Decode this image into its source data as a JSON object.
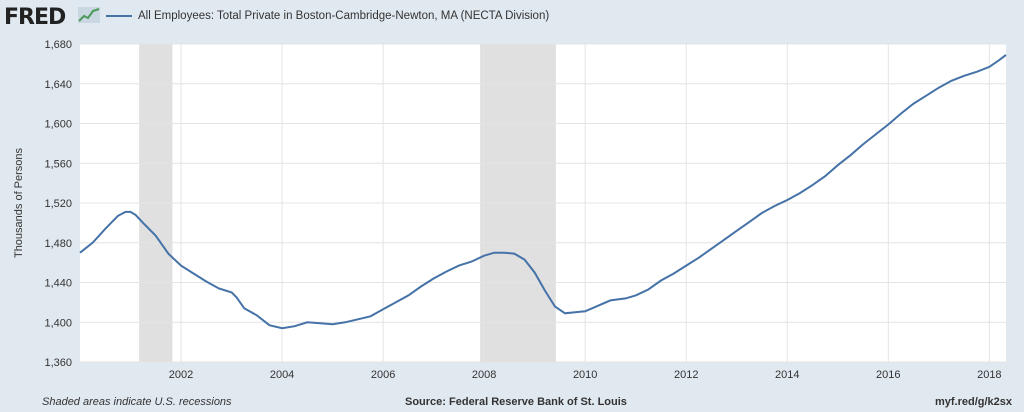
{
  "header": {
    "logo_text": "FRED",
    "logo_icon": "chart-line-icon",
    "legend_label": "All Employees: Total Private in Boston-Cambridge-Newton, MA (NECTA Division)"
  },
  "footer": {
    "note": "Shaded areas indicate U.S. recessions",
    "source": "Source: Federal Reserve Bank of St. Louis",
    "url": "myf.red/g/k2sx"
  },
  "colors": {
    "line": "#4572a7",
    "recession": "#e0e0e0",
    "background": "#e1e9f0",
    "plot": "#ffffff"
  },
  "chart_data": {
    "type": "line",
    "title": "",
    "xlabel": "",
    "ylabel": "Thousands of Persons",
    "xlim": [
      2000.0,
      2018.33
    ],
    "ylim": [
      1360,
      1680
    ],
    "yticks": [
      1360,
      1400,
      1440,
      1480,
      1520,
      1560,
      1600,
      1640,
      1680
    ],
    "xticks": [
      2002,
      2004,
      2006,
      2008,
      2010,
      2012,
      2014,
      2016,
      2018
    ],
    "ytick_labels": [
      "1,360",
      "1,400",
      "1,440",
      "1,480",
      "1,520",
      "1,560",
      "1,600",
      "1,640",
      "1,680"
    ],
    "xtick_labels": [
      "2002",
      "2004",
      "2006",
      "2008",
      "2010",
      "2012",
      "2014",
      "2016",
      "2018"
    ],
    "grid": true,
    "recessions": [
      [
        2001.17,
        2001.83
      ],
      [
        2007.92,
        2009.42
      ]
    ],
    "series": [
      {
        "name": "All Employees: Total Private in Boston-Cambridge-Newton, MA (NECTA Division)",
        "x": [
          2000.0,
          2000.25,
          2000.5,
          2000.75,
          2000.9,
          2001.0,
          2001.1,
          2001.25,
          2001.5,
          2001.75,
          2002.0,
          2002.25,
          2002.5,
          2002.75,
          2003.0,
          2003.1,
          2003.25,
          2003.5,
          2003.75,
          2004.0,
          2004.25,
          2004.5,
          2004.75,
          2005.0,
          2005.25,
          2005.5,
          2005.75,
          2006.0,
          2006.25,
          2006.5,
          2006.75,
          2007.0,
          2007.25,
          2007.5,
          2007.75,
          2008.0,
          2008.2,
          2008.4,
          2008.6,
          2008.8,
          2009.0,
          2009.2,
          2009.4,
          2009.6,
          2009.8,
          2010.0,
          2010.5,
          2010.8,
          2011.0,
          2011.25,
          2011.5,
          2011.75,
          2012.0,
          2012.25,
          2012.5,
          2012.75,
          2013.0,
          2013.25,
          2013.5,
          2013.75,
          2014.0,
          2014.25,
          2014.5,
          2014.75,
          2015.0,
          2015.25,
          2015.5,
          2015.75,
          2016.0,
          2016.25,
          2016.5,
          2016.75,
          2017.0,
          2017.25,
          2017.5,
          2017.75,
          2018.0,
          2018.2,
          2018.33
        ],
        "y": [
          1470,
          1480,
          1494,
          1507,
          1511,
          1511,
          1508,
          1500,
          1487,
          1469,
          1457,
          1449,
          1441,
          1434,
          1430,
          1425,
          1414,
          1407,
          1397,
          1394,
          1396,
          1400,
          1399,
          1398,
          1400,
          1403,
          1406,
          1413,
          1420,
          1427,
          1436,
          1444,
          1451,
          1457,
          1461,
          1467,
          1470,
          1470,
          1469,
          1463,
          1450,
          1432,
          1416,
          1409,
          1410,
          1411,
          1422,
          1424,
          1427,
          1433,
          1442,
          1449,
          1457,
          1465,
          1474,
          1483,
          1492,
          1501,
          1510,
          1517,
          1523,
          1530,
          1538,
          1547,
          1558,
          1568,
          1579,
          1589,
          1599,
          1610,
          1620,
          1628,
          1636,
          1643,
          1648,
          1652,
          1657,
          1664,
          1669
        ]
      }
    ]
  }
}
